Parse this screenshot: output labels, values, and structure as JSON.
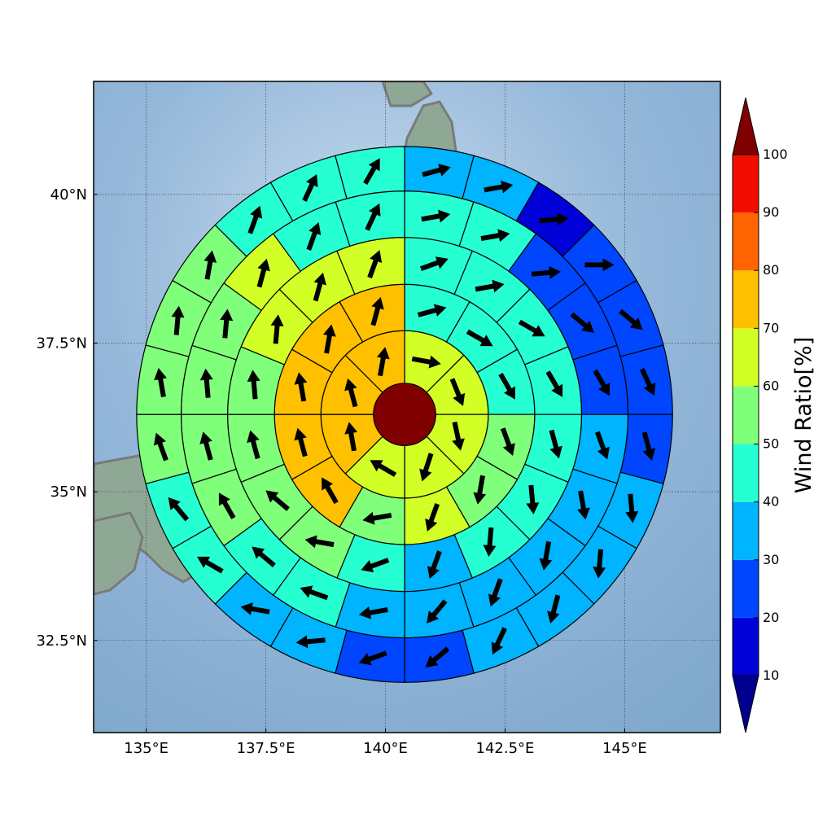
{
  "chart_data": {
    "type": "heatmap",
    "title": "",
    "map_extent": {
      "lon": [
        133.9,
        147.0
      ],
      "lat": [
        30.95,
        41.9
      ]
    },
    "grid": true,
    "x_ticks": [
      {
        "value": 135,
        "label": "135°E"
      },
      {
        "value": 137.5,
        "label": "137.5°E"
      },
      {
        "value": 140,
        "label": "140°E"
      },
      {
        "value": 142.5,
        "label": "142.5°E"
      },
      {
        "value": 145,
        "label": "145°E"
      }
    ],
    "y_ticks": [
      {
        "value": 32.5,
        "label": "32.5°N"
      },
      {
        "value": 35,
        "label": "35°N"
      },
      {
        "value": 37.5,
        "label": "37.5°N"
      },
      {
        "value": 40,
        "label": "40°N"
      }
    ],
    "center": {
      "lon": 140.4,
      "lat": 36.3
    },
    "ring_radii_deg": [
      0.65,
      1.75,
      2.72,
      3.7,
      4.67,
      5.6
    ],
    "center_value": 100,
    "ring_sectors": [
      {
        "ring": 1,
        "sectors": 8,
        "values": [
          65,
          66,
          63,
          66,
          62,
          72,
          74,
          74
        ],
        "arrow_dir_deg": [
          100,
          158,
          168,
          198,
          300,
          350,
          345,
          10
        ]
      },
      {
        "ring": 2,
        "sectors": 12,
        "values": [
          42,
          42,
          46,
          55,
          54,
          65,
          57,
          73,
          76,
          74,
          75,
          74
        ],
        "arrow_dir_deg": [
          75,
          120,
          150,
          160,
          190,
          200,
          260,
          330,
          345,
          350,
          10,
          15
        ]
      },
      {
        "ring": 3,
        "sectors": 16,
        "values": [
          44,
          45,
          43,
          43,
          42,
          47,
          48,
          34,
          43,
          54,
          56,
          54,
          55,
          63,
          64,
          61
        ],
        "arrow_dir_deg": [
          70,
          80,
          120,
          150,
          165,
          175,
          185,
          200,
          250,
          280,
          310,
          345,
          355,
          5,
          15,
          20
        ],
        "colors_override": [
          4,
          4,
          4,
          4,
          4,
          4,
          4,
          4,
          4,
          4,
          4,
          4,
          4,
          4,
          4,
          4
        ]
      },
      {
        "ring": 4,
        "sectors": 20,
        "values": [
          46,
          44,
          26,
          24,
          27,
          33,
          34,
          36,
          36,
          31,
          34,
          45,
          46,
          52,
          52,
          54,
          56,
          63,
          46,
          48
        ],
        "arrow_dir_deg": [
          80,
          80,
          85,
          130,
          150,
          160,
          170,
          190,
          200,
          220,
          260,
          290,
          310,
          330,
          345,
          355,
          5,
          15,
          20,
          25
        ]
      },
      {
        "ring": 5,
        "sectors": 24,
        "values": [
          36,
          34,
          18,
          20,
          24,
          24,
          26,
          32,
          34,
          35,
          36,
          24,
          22,
          34,
          37,
          43,
          42,
          52,
          52,
          53,
          56,
          42,
          45,
          44
        ],
        "arrow_dir_deg": [
          75,
          80,
          85,
          90,
          130,
          155,
          165,
          175,
          185,
          195,
          205,
          230,
          250,
          265,
          280,
          300,
          320,
          340,
          350,
          5,
          10,
          20,
          25,
          30
        ]
      },
      {
        "ring": 6,
        "sectors": 28,
        "values": [
          32,
          22,
          15,
          14,
          15,
          13,
          12,
          24,
          26,
          24,
          22,
          26,
          28,
          27,
          25,
          24,
          22,
          26,
          34,
          35,
          38,
          45,
          43,
          45,
          42,
          42,
          44,
          45
        ],
        "arrow_dir_deg": [
          70,
          75,
          80,
          85,
          95,
          110,
          140,
          165,
          170,
          175,
          185,
          195,
          205,
          220,
          240,
          255,
          265,
          280,
          295,
          310,
          330,
          345,
          355,
          10,
          15,
          20,
          25,
          30
        ]
      }
    ],
    "colorbar": {
      "label": "Wind Ratio[%]",
      "ticks": [
        10,
        20,
        30,
        40,
        50,
        60,
        70,
        80,
        90,
        100
      ],
      "levels": [
        {
          "from": 10,
          "to": 20,
          "color": "#0000d9"
        },
        {
          "from": 20,
          "to": 30,
          "color": "#0046ff"
        },
        {
          "from": 30,
          "to": 40,
          "color": "#00b4ff"
        },
        {
          "from": 40,
          "to": 50,
          "color": "#26ffd2"
        },
        {
          "from": 50,
          "to": 60,
          "color": "#80ff7a"
        },
        {
          "from": 60,
          "to": 70,
          "color": "#d2ff26"
        },
        {
          "from": 70,
          "to": 80,
          "color": "#ffc000"
        },
        {
          "from": 80,
          "to": 90,
          "color": "#ff6400"
        },
        {
          "from": 90,
          "to": 100,
          "color": "#f10e00"
        }
      ],
      "under_color": "#00008f",
      "over_color": "#800000"
    },
    "colors": {
      "ocean": "#87aed3",
      "land": "#8fa896",
      "coastline": "#7a7a7a",
      "arrow": "#000000"
    }
  }
}
